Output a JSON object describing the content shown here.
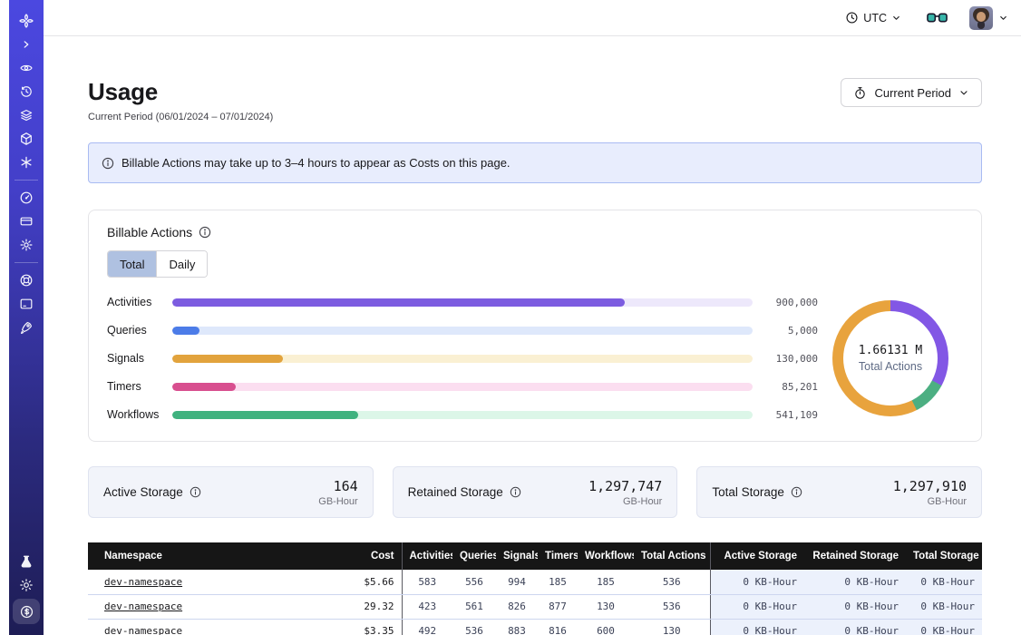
{
  "colors": {
    "sidebar_top": "#4B48E0",
    "sidebar_bottom": "#1E1D55",
    "banner_bg": "#E8EDFD",
    "banner_border": "#A9BBF2",
    "selected_tab_bg": "#AFC1E1",
    "table_header_bg": "#161616",
    "storage_cell_bg": "#ECF1FC",
    "storage_card_bg": "#F2F4FA"
  },
  "topbar": {
    "timezone": "UTC",
    "icons": [
      "clock-icon",
      "glasses-icon",
      "avatar",
      "chevron-down-icon"
    ]
  },
  "sidebar": {
    "icons": [
      "temporal-logo",
      "collapse-chevron",
      "eye",
      "history-clock",
      "layers",
      "cube",
      "asterisk",
      "gauge",
      "credit-card",
      "gear",
      "life-ring",
      "terminal",
      "rocket",
      "flask",
      "sun",
      "dollar-coin"
    ],
    "active": "dollar-coin"
  },
  "page": {
    "title": "Usage",
    "subtitle": "Current Period (06/01/2024 – 07/01/2024)",
    "period_button_label": "Current Period",
    "banner_text": "Billable Actions may take up to 3–4 hours to appear as Costs on this page."
  },
  "billable": {
    "title": "Billable Actions",
    "tabs": [
      {
        "label": "Total",
        "selected": true
      },
      {
        "label": "Daily",
        "selected": false
      }
    ]
  },
  "chart_data": [
    {
      "type": "bar",
      "orientation": "horizontal",
      "title": "Billable Actions",
      "categories": [
        "Activities",
        "Queries",
        "Signals",
        "Timers",
        "Workflows"
      ],
      "values": [
        900000,
        5000,
        130000,
        85201,
        541109
      ],
      "value_labels": [
        "900,000",
        "5,000",
        "130,000",
        "85,201",
        "541,109"
      ],
      "fill_pct": [
        78,
        4.7,
        19,
        11,
        32
      ],
      "bar_colors": [
        "#7C5CE0",
        "#4C7CE8",
        "#E2A33D",
        "#D84F8F",
        "#3FB27F"
      ],
      "track_colors": [
        "#EDE8FB",
        "#DEE8FB",
        "#FAF0D3",
        "#FBDEF0",
        "#DCF6E8"
      ]
    },
    {
      "type": "pie",
      "subtype": "donut",
      "segments": [
        {
          "name": "purple",
          "color": "#8257E5",
          "deg": 118
        },
        {
          "name": "green",
          "color": "#4CAF82",
          "deg": 35
        },
        {
          "name": "orange",
          "color": "#E8A33D",
          "deg": 207
        }
      ],
      "center_value": "1.66131 M",
      "center_label": "Total Actions"
    }
  ],
  "storage_cards": [
    {
      "label": "Active Storage",
      "value": "164",
      "unit": "GB-Hour"
    },
    {
      "label": "Retained Storage",
      "value": "1,297,747",
      "unit": "GB-Hour"
    },
    {
      "label": "Total Storage",
      "value": "1,297,910",
      "unit": "GB-Hour"
    }
  ],
  "table": {
    "columns": [
      "Namespace",
      "Cost",
      "Activities",
      "Queries",
      "Signals",
      "Timers",
      "Workflows",
      "Total Actions",
      "Active Storage",
      "Retained Storage",
      "Total Storage"
    ],
    "rows": [
      [
        "dev-namespace",
        "$5.66",
        "583",
        "556",
        "994",
        "185",
        "185",
        "536",
        "0 KB-Hour",
        "0 KB-Hour",
        "0 KB-Hour"
      ],
      [
        "dev-namespace",
        "29.32",
        "423",
        "561",
        "826",
        "877",
        "130",
        "536",
        "0 KB-Hour",
        "0 KB-Hour",
        "0 KB-Hour"
      ],
      [
        "dev-namespace",
        "$3.35",
        "492",
        "536",
        "883",
        "816",
        "600",
        "130",
        "0 KB-Hour",
        "0 KB-Hour",
        "0 KB-Hour"
      ]
    ]
  }
}
